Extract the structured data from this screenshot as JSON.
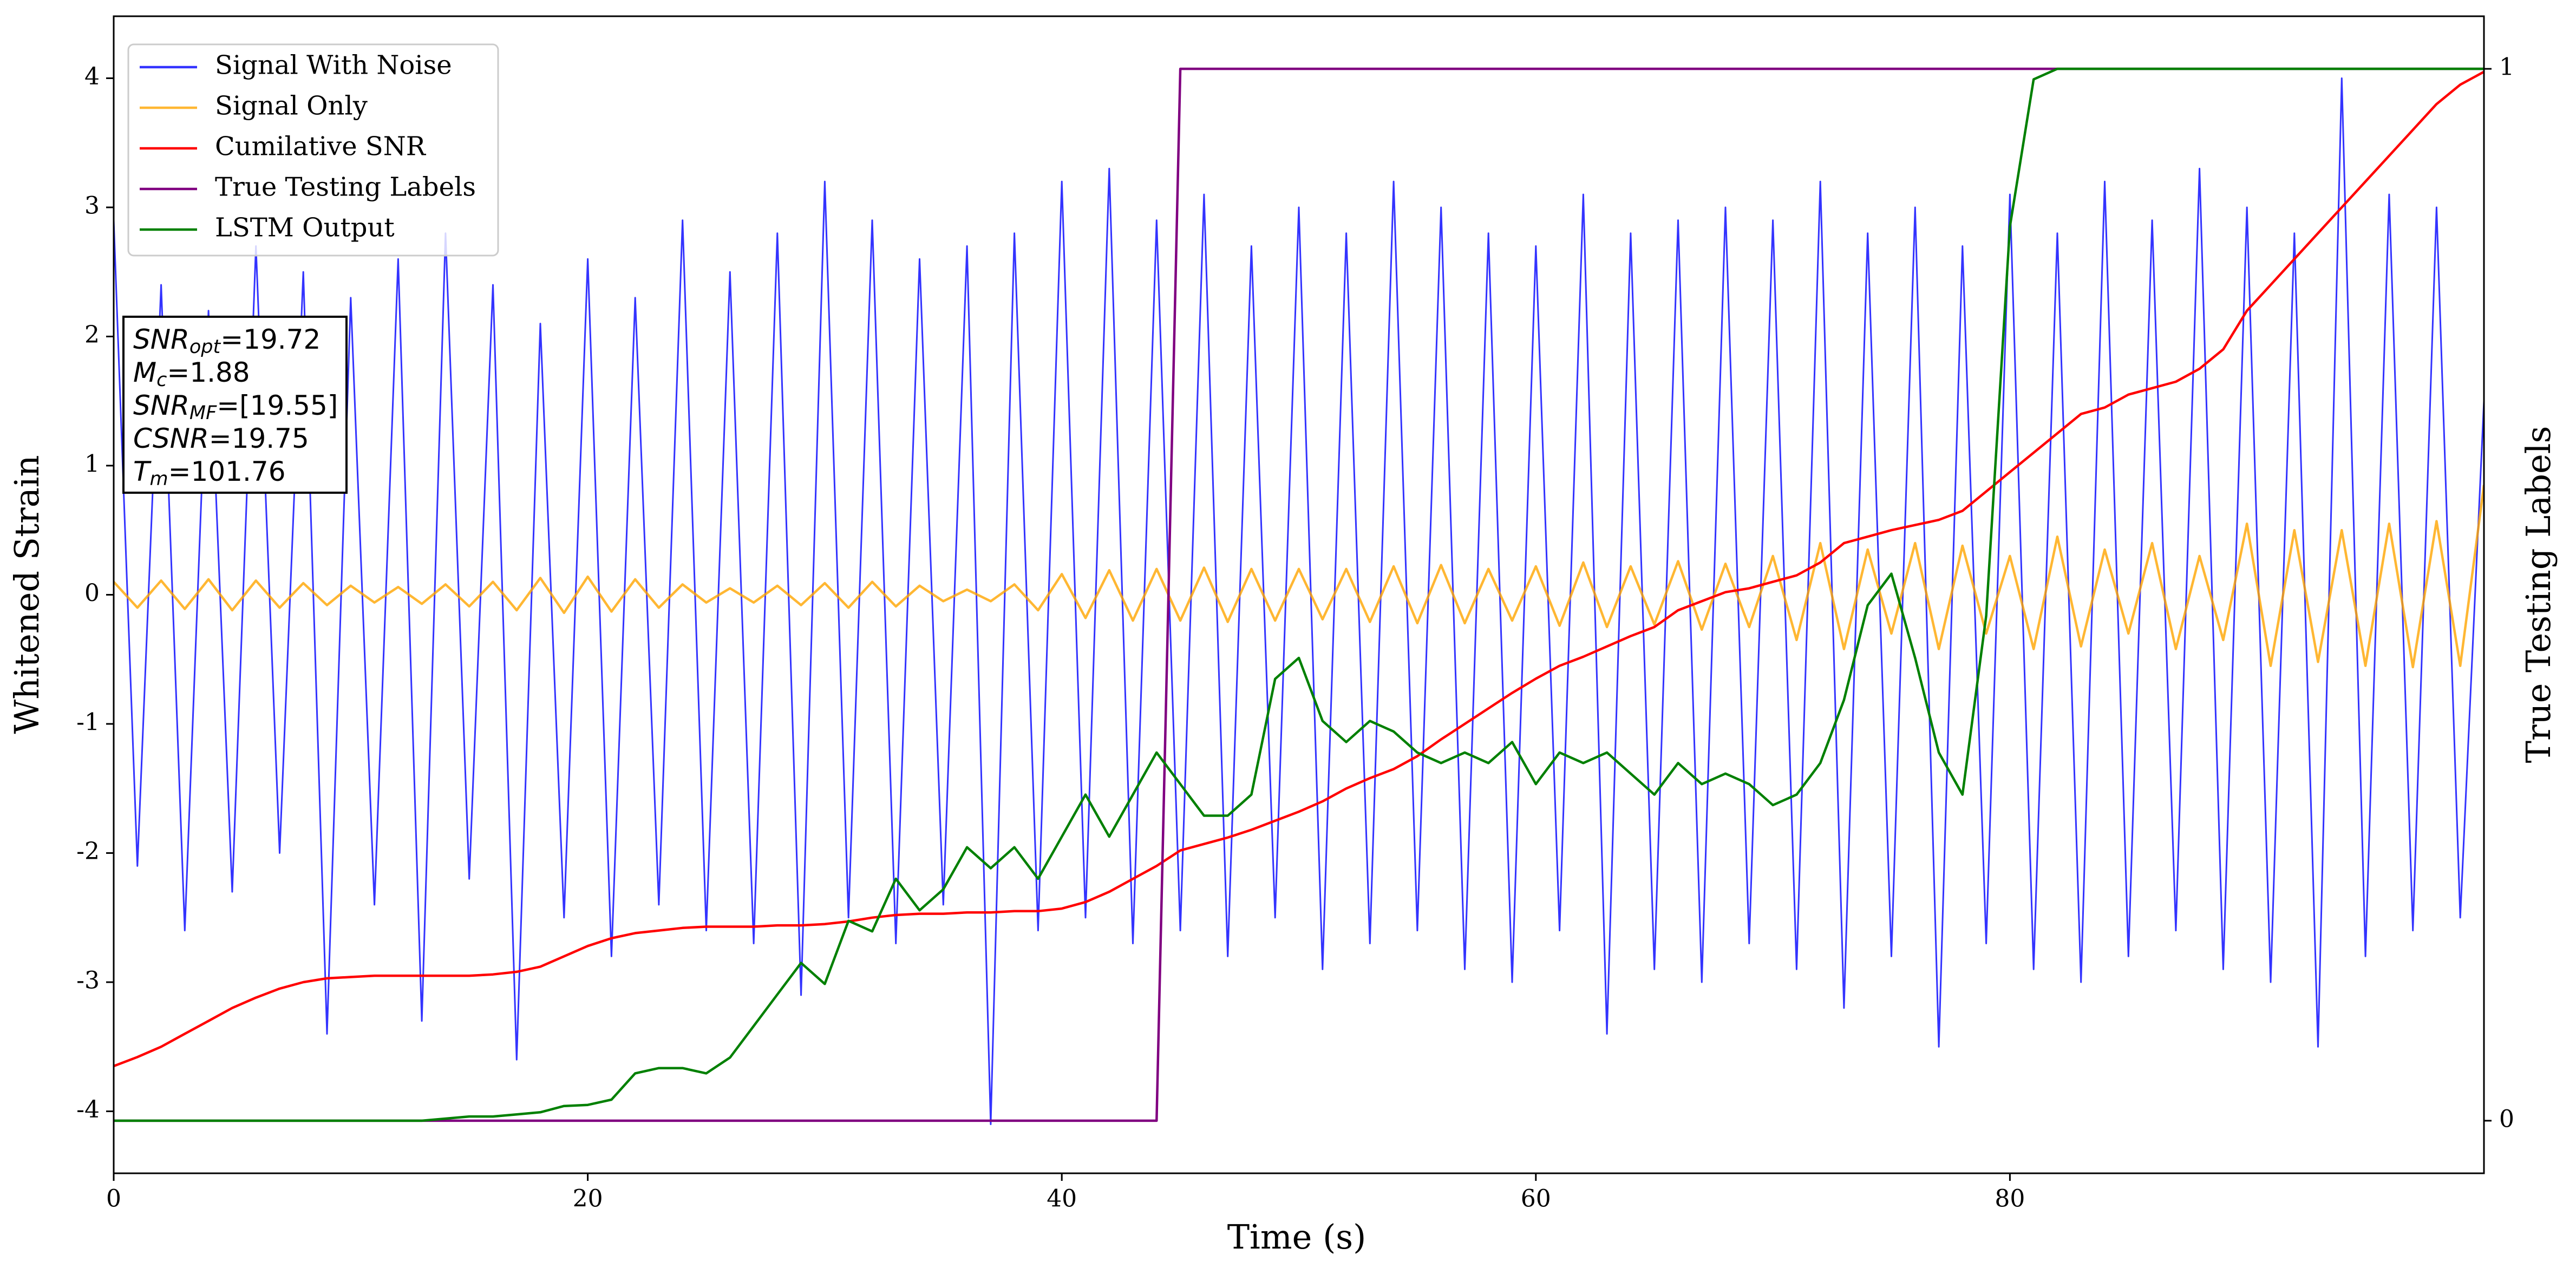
{
  "chart_data": {
    "type": "line",
    "xlabel": "Time (s)",
    "ylabel": "Whitened Strain",
    "y2label": "True Testing Labels",
    "xlim": [
      0,
      100
    ],
    "xticks": [
      0,
      20,
      40,
      60,
      80
    ],
    "ylim": [
      -4.48,
      4.48
    ],
    "yticks": [
      -4,
      -3,
      -2,
      -1,
      0,
      1,
      2,
      3,
      4
    ],
    "y2lim": [
      -0.05,
      1.05
    ],
    "y2ticks": [
      0,
      1
    ],
    "grid": false,
    "legend": "upper left",
    "x": [
      0,
      1,
      2,
      3,
      4,
      5,
      6,
      7,
      8,
      9,
      10,
      11,
      12,
      13,
      14,
      15,
      16,
      17,
      18,
      19,
      20,
      21,
      22,
      23,
      24,
      25,
      26,
      27,
      28,
      29,
      30,
      31,
      32,
      33,
      34,
      35,
      36,
      37,
      38,
      39,
      40,
      41,
      42,
      43,
      44,
      45,
      46,
      47,
      48,
      49,
      50,
      51,
      52,
      53,
      54,
      55,
      56,
      57,
      58,
      59,
      60,
      61,
      62,
      63,
      64,
      65,
      66,
      67,
      68,
      69,
      70,
      71,
      72,
      73,
      74,
      75,
      76,
      77,
      78,
      79,
      80,
      81,
      82,
      83,
      84,
      85,
      86,
      87,
      88,
      89,
      90,
      91,
      92,
      93,
      94,
      95,
      96,
      97,
      98,
      99,
      100
    ],
    "series": [
      {
        "name": "Signal With Noise",
        "color": "#0000ff",
        "values": [
          2.9,
          -2.1,
          2.4,
          -2.6,
          2.2,
          -2.3,
          2.7,
          -2.0,
          2.5,
          -3.4,
          2.3,
          -2.4,
          2.6,
          -3.3,
          2.8,
          -2.2,
          2.4,
          -3.6,
          2.1,
          -2.5,
          2.6,
          -2.8,
          2.3,
          -2.4,
          2.9,
          -2.6,
          2.5,
          -2.7,
          2.8,
          -3.1,
          3.2,
          -2.5,
          2.9,
          -2.7,
          2.6,
          -2.4,
          2.7,
          -4.1,
          2.8,
          -2.6,
          3.2,
          -2.5,
          3.3,
          -2.7,
          2.9,
          -2.6,
          3.1,
          -2.8,
          2.7,
          -2.5,
          3.0,
          -2.9,
          2.8,
          -2.7,
          3.2,
          -2.6,
          3.0,
          -2.9,
          2.8,
          -3.0,
          2.7,
          -2.6,
          3.1,
          -3.4,
          2.8,
          -2.9,
          2.9,
          -3.0,
          3.0,
          -2.7,
          2.9,
          -2.9,
          3.2,
          -3.2,
          2.8,
          -2.8,
          3.0,
          -3.5,
          2.7,
          -2.7,
          3.1,
          -2.9,
          2.8,
          -3.0,
          3.2,
          -2.8,
          2.9,
          -2.6,
          3.3,
          -2.9,
          3.0,
          -3.0,
          2.8,
          -3.5,
          4.0,
          -2.8,
          3.1,
          -2.6,
          3.0,
          -2.5,
          1.5
        ]
      },
      {
        "name": "Signal Only",
        "color": "#ffa500",
        "values": [
          0.1,
          -0.1,
          0.11,
          -0.11,
          0.12,
          -0.12,
          0.11,
          -0.1,
          0.09,
          -0.08,
          0.07,
          -0.06,
          0.06,
          -0.07,
          0.08,
          -0.09,
          0.1,
          -0.12,
          0.13,
          -0.14,
          0.14,
          -0.13,
          0.12,
          -0.1,
          0.08,
          -0.06,
          0.05,
          -0.06,
          0.07,
          -0.08,
          0.09,
          -0.1,
          0.1,
          -0.09,
          0.07,
          -0.05,
          0.04,
          -0.05,
          0.08,
          -0.12,
          0.16,
          -0.18,
          0.19,
          -0.2,
          0.2,
          -0.2,
          0.21,
          -0.21,
          0.2,
          -0.2,
          0.2,
          -0.19,
          0.2,
          -0.21,
          0.22,
          -0.22,
          0.23,
          -0.22,
          0.2,
          -0.2,
          0.22,
          -0.24,
          0.25,
          -0.25,
          0.22,
          -0.23,
          0.26,
          -0.27,
          0.24,
          -0.25,
          0.3,
          -0.35,
          0.4,
          -0.42,
          0.35,
          -0.3,
          0.4,
          -0.42,
          0.38,
          -0.3,
          0.3,
          -0.42,
          0.45,
          -0.4,
          0.35,
          -0.3,
          0.4,
          -0.42,
          0.3,
          -0.35,
          0.55,
          -0.55,
          0.5,
          -0.52,
          0.5,
          -0.55,
          0.55,
          -0.56,
          0.57,
          -0.55,
          0.85
        ]
      },
      {
        "name": "Cumilative SNR",
        "color": "#ff0000",
        "values": [
          -3.65,
          -3.58,
          -3.5,
          -3.4,
          -3.3,
          -3.2,
          -3.12,
          -3.05,
          -3.0,
          -2.97,
          -2.96,
          -2.95,
          -2.95,
          -2.95,
          -2.95,
          -2.95,
          -2.94,
          -2.92,
          -2.88,
          -2.8,
          -2.72,
          -2.66,
          -2.62,
          -2.6,
          -2.58,
          -2.57,
          -2.57,
          -2.57,
          -2.56,
          -2.56,
          -2.55,
          -2.53,
          -2.5,
          -2.48,
          -2.47,
          -2.47,
          -2.46,
          -2.46,
          -2.45,
          -2.45,
          -2.43,
          -2.38,
          -2.3,
          -2.2,
          -2.1,
          -1.98,
          -1.93,
          -1.88,
          -1.82,
          -1.75,
          -1.68,
          -1.6,
          -1.5,
          -1.42,
          -1.35,
          -1.25,
          -1.12,
          -1.0,
          -0.88,
          -0.76,
          -0.65,
          -0.55,
          -0.48,
          -0.4,
          -0.32,
          -0.25,
          -0.12,
          -0.05,
          0.02,
          0.05,
          0.1,
          0.15,
          0.25,
          0.4,
          0.45,
          0.5,
          0.54,
          0.58,
          0.65,
          0.8,
          0.95,
          1.1,
          1.25,
          1.4,
          1.45,
          1.55,
          1.6,
          1.65,
          1.75,
          1.9,
          2.2,
          2.4,
          2.6,
          2.8,
          3.0,
          3.2,
          3.4,
          3.6,
          3.8,
          3.95,
          4.05
        ]
      },
      {
        "name": "True Testing Labels",
        "color": "#800080",
        "axis": "y2",
        "values": [
          0,
          0,
          0,
          0,
          0,
          0,
          0,
          0,
          0,
          0,
          0,
          0,
          0,
          0,
          0,
          0,
          0,
          0,
          0,
          0,
          0,
          0,
          0,
          0,
          0,
          0,
          0,
          0,
          0,
          0,
          0,
          0,
          0,
          0,
          0,
          0,
          0,
          0,
          0,
          0,
          0,
          0,
          0,
          0,
          0,
          1,
          1,
          1,
          1,
          1,
          1,
          1,
          1,
          1,
          1,
          1,
          1,
          1,
          1,
          1,
          1,
          1,
          1,
          1,
          1,
          1,
          1,
          1,
          1,
          1,
          1,
          1,
          1,
          1,
          1,
          1,
          1,
          1,
          1,
          1,
          1,
          1,
          1,
          1,
          1,
          1,
          1,
          1,
          1,
          1,
          1,
          1,
          1,
          1,
          1,
          1,
          1,
          1,
          1,
          1,
          1
        ]
      },
      {
        "name": "LSTM Output",
        "color": "#008000",
        "axis": "y2",
        "values": [
          0,
          0,
          0,
          0,
          0,
          0,
          0,
          0,
          0,
          0,
          0,
          0,
          0,
          0,
          0.002,
          0.004,
          0.004,
          0.006,
          0.008,
          0.014,
          0.015,
          0.02,
          0.045,
          0.05,
          0.05,
          0.045,
          0.06,
          0.09,
          0.12,
          0.15,
          0.13,
          0.19,
          0.18,
          0.23,
          0.2,
          0.22,
          0.26,
          0.24,
          0.26,
          0.23,
          0.27,
          0.31,
          0.27,
          0.31,
          0.35,
          0.32,
          0.29,
          0.29,
          0.31,
          0.42,
          0.44,
          0.38,
          0.36,
          0.38,
          0.37,
          0.35,
          0.34,
          0.35,
          0.34,
          0.36,
          0.32,
          0.35,
          0.34,
          0.35,
          0.33,
          0.31,
          0.34,
          0.32,
          0.33,
          0.32,
          0.3,
          0.31,
          0.34,
          0.4,
          0.49,
          0.52,
          0.44,
          0.35,
          0.31,
          0.48,
          0.85,
          0.99,
          1,
          1,
          1,
          1,
          1,
          1,
          1,
          1,
          1,
          1,
          1,
          1,
          1,
          1,
          1,
          1,
          1,
          1,
          1
        ]
      }
    ],
    "annotations": [
      {
        "symbol": "SNR",
        "subscript": "opt",
        "value": "=19.72"
      },
      {
        "symbol": "M",
        "subscript": "c",
        "value": "=1.88"
      },
      {
        "symbol": "SNR",
        "subscript": "MF",
        "value": "=[19.55]"
      },
      {
        "symbol": "CSNR",
        "value": "=19.75"
      },
      {
        "symbol": "T",
        "subscript": "m",
        "value": "=101.76"
      }
    ]
  }
}
